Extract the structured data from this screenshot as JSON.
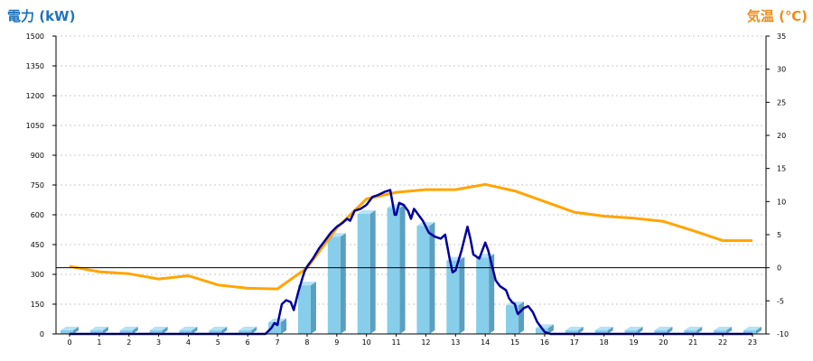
{
  "chart_data": {
    "type": "bar",
    "title_left": "電力 (kW)",
    "title_right": "気温 (℃)",
    "xlabel": "",
    "categories": [
      "0",
      "1",
      "2",
      "3",
      "4",
      "5",
      "6",
      "7",
      "8",
      "9",
      "10",
      "11",
      "12",
      "13",
      "14",
      "15",
      "16",
      "17",
      "18",
      "19",
      "20",
      "21",
      "22",
      "23"
    ],
    "y_left": {
      "min": 0,
      "max": 1500,
      "ticks": [
        "0",
        "150",
        "300",
        "450",
        "600",
        "750",
        "900",
        "1050",
        "1200",
        "1350",
        "1500"
      ]
    },
    "y_right": {
      "min": -10,
      "max": 35,
      "ticks": [
        "-10",
        "-5",
        "0",
        "5",
        "10",
        "15",
        "20",
        "25",
        "30",
        "35"
      ]
    },
    "grid": true,
    "series": [
      {
        "kind": "bar",
        "axis": "left",
        "values": [
          0,
          0,
          0,
          0,
          0,
          0,
          0,
          60,
          245,
          490,
          605,
          635,
          545,
          370,
          385,
          145,
          30,
          0,
          0,
          0,
          0,
          0,
          0,
          0
        ]
      },
      {
        "kind": "line",
        "axis": "left",
        "points": [
          [
            0,
            0
          ],
          [
            1,
            0
          ],
          [
            2,
            0
          ],
          [
            3,
            0
          ],
          [
            4,
            0
          ],
          [
            5,
            0
          ],
          [
            6,
            0
          ],
          [
            6.6,
            0
          ],
          [
            6.8,
            30
          ],
          [
            6.9,
            55
          ],
          [
            7.0,
            45
          ],
          [
            7.05,
            80
          ],
          [
            7.15,
            150
          ],
          [
            7.3,
            170
          ],
          [
            7.45,
            160
          ],
          [
            7.55,
            120
          ],
          [
            7.7,
            210
          ],
          [
            7.9,
            310
          ],
          [
            8.0,
            340
          ],
          [
            8.2,
            380
          ],
          [
            8.4,
            430
          ],
          [
            8.6,
            470
          ],
          [
            8.8,
            510
          ],
          [
            9.0,
            540
          ],
          [
            9.2,
            560
          ],
          [
            9.35,
            580
          ],
          [
            9.45,
            570
          ],
          [
            9.6,
            620
          ],
          [
            9.8,
            630
          ],
          [
            10.0,
            650
          ],
          [
            10.2,
            690
          ],
          [
            10.4,
            700
          ],
          [
            10.6,
            715
          ],
          [
            10.8,
            725
          ],
          [
            10.95,
            600
          ],
          [
            11.0,
            600
          ],
          [
            11.1,
            660
          ],
          [
            11.25,
            650
          ],
          [
            11.4,
            620
          ],
          [
            11.5,
            580
          ],
          [
            11.6,
            630
          ],
          [
            11.75,
            600
          ],
          [
            11.9,
            570
          ],
          [
            12.0,
            540
          ],
          [
            12.1,
            510
          ],
          [
            12.3,
            490
          ],
          [
            12.5,
            480
          ],
          [
            12.65,
            500
          ],
          [
            12.8,
            380
          ],
          [
            12.9,
            310
          ],
          [
            13.0,
            320
          ],
          [
            13.2,
            420
          ],
          [
            13.4,
            540
          ],
          [
            13.5,
            480
          ],
          [
            13.6,
            400
          ],
          [
            13.8,
            380
          ],
          [
            13.9,
            420
          ],
          [
            14.0,
            460
          ],
          [
            14.1,
            420
          ],
          [
            14.25,
            330
          ],
          [
            14.35,
            270
          ],
          [
            14.5,
            240
          ],
          [
            14.7,
            220
          ],
          [
            14.8,
            180
          ],
          [
            14.9,
            160
          ],
          [
            15.0,
            150
          ],
          [
            15.05,
            120
          ],
          [
            15.1,
            100
          ],
          [
            15.3,
            130
          ],
          [
            15.45,
            140
          ],
          [
            15.6,
            110
          ],
          [
            15.75,
            60
          ],
          [
            15.9,
            30
          ],
          [
            16.0,
            10
          ],
          [
            16.2,
            0
          ],
          [
            17,
            0
          ],
          [
            18,
            0
          ],
          [
            19,
            0
          ],
          [
            20,
            0
          ],
          [
            21,
            0
          ],
          [
            22,
            0
          ],
          [
            23,
            0
          ]
        ]
      },
      {
        "kind": "line",
        "axis": "right",
        "values": [
          0.2,
          -0.6,
          -0.9,
          -1.7,
          -1.2,
          -2.6,
          -3.1,
          -3.2,
          0.0,
          6.0,
          10.4,
          11.4,
          11.8,
          11.8,
          12.6,
          11.6,
          10.0,
          8.4,
          7.8,
          7.5,
          7.0,
          5.6,
          4.1,
          4.1
        ]
      }
    ],
    "colors": {
      "title_left": "#1e73be",
      "title_right": "#ee8d1a",
      "bar_front": "#87ceeb",
      "bar_side": "#5b9fc0",
      "bar_top": "#b6e2f5",
      "power_line": "#000099",
      "temp_line": "#ffa500",
      "grid": "#c8c8c8",
      "axis": "#000000"
    }
  }
}
